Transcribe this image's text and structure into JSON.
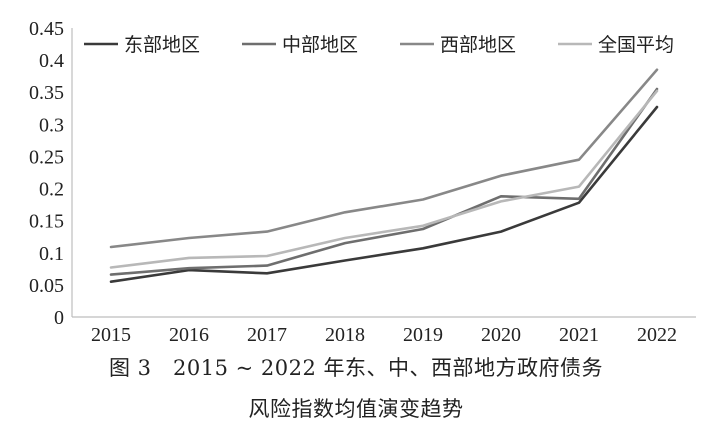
{
  "chart_data": {
    "type": "line",
    "categories": [
      "2015",
      "2016",
      "2017",
      "2018",
      "2019",
      "2020",
      "2021",
      "2022"
    ],
    "series": [
      {
        "name": "东部地区",
        "color": "#3a3a3a",
        "values": [
          0.055,
          0.073,
          0.068,
          0.088,
          0.107,
          0.133,
          0.178,
          0.327
        ]
      },
      {
        "name": "中部地区",
        "color": "#6e6e6e",
        "values": [
          0.066,
          0.076,
          0.08,
          0.115,
          0.137,
          0.188,
          0.184,
          0.355
        ]
      },
      {
        "name": "西部地区",
        "color": "#888888",
        "values": [
          0.109,
          0.123,
          0.133,
          0.163,
          0.183,
          0.22,
          0.245,
          0.385
        ]
      },
      {
        "name": "全国平均",
        "color": "#b8b8b8",
        "values": [
          0.077,
          0.092,
          0.095,
          0.123,
          0.142,
          0.18,
          0.203,
          0.352
        ]
      }
    ],
    "yticks": [
      "0",
      "0.05",
      "0.1",
      "0.15",
      "0.2",
      "0.25",
      "0.3",
      "0.35",
      "0.4",
      "0.45"
    ],
    "ylim": [
      0,
      0.45
    ],
    "grid": false,
    "legend": "top"
  },
  "caption": {
    "line1": "图 3　2015 ~ 2022 年东、中、西部地方政府债务",
    "line2": "风险指数均值演变趋势"
  }
}
